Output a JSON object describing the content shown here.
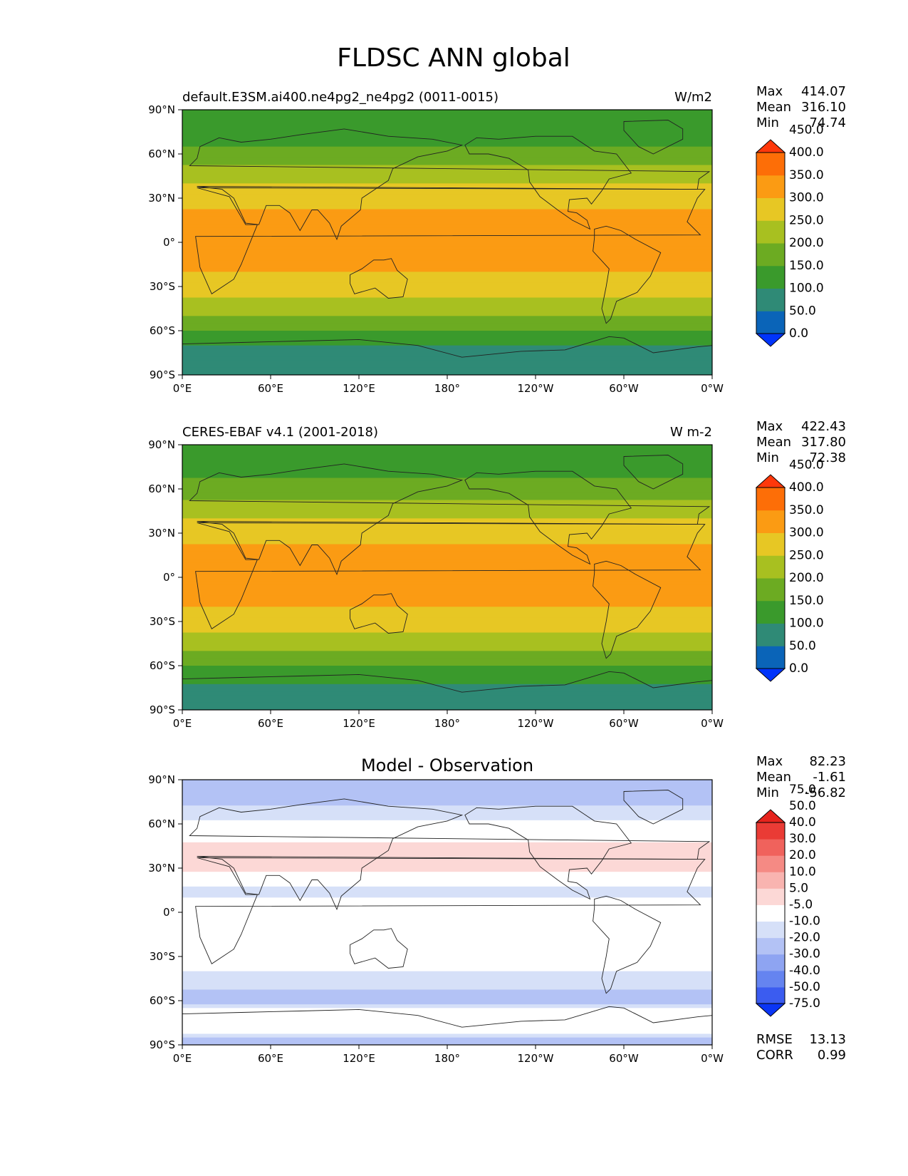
{
  "figure": {
    "title": "FLDSC ANN global"
  },
  "axes": {
    "lat_ticks": [
      "90°N",
      "60°N",
      "30°N",
      "0°",
      "30°S",
      "60°S",
      "90°S"
    ],
    "lon_ticks": [
      "0°E",
      "60°E",
      "120°E",
      "180°",
      "120°W",
      "60°W",
      "0°W"
    ]
  },
  "colors": {
    "abs_levels": [
      "#0034fb",
      "#0a64b8",
      "#2f8a76",
      "#3a9a2c",
      "#6cab22",
      "#a8c020",
      "#e7c724",
      "#fb9b13",
      "#fd6e07",
      "#ff380b"
    ],
    "diff_levels": [
      "#0a35f5",
      "#3b5cf0",
      "#6584f0",
      "#8ea4f2",
      "#b3c2f5",
      "#d6e0f8",
      "#ffffff",
      "#fcd8d6",
      "#f9b4b0",
      "#f58a84",
      "#f0625c",
      "#ea3b35",
      "#e6231d"
    ]
  },
  "chart_data": [
    {
      "type": "heatmap",
      "title": "default.E3SM.ai400.ne4pg2_ne4pg2 (0011-0015)",
      "units": "W/m2",
      "stats": {
        "max": "414.07",
        "mean": "316.10",
        "min": "74.74"
      },
      "stat_labels": [
        "Max",
        "Mean",
        "Min"
      ],
      "colorbar": [
        "0.0",
        "50.0",
        "100.0",
        "150.0",
        "200.0",
        "250.0",
        "300.0",
        "350.0",
        "400.0",
        "450.0"
      ],
      "xlim": [
        0,
        360
      ],
      "ylim": [
        -90,
        90
      ],
      "mean_profile": [
        {
          "lat": 90,
          "value": 160
        },
        {
          "lat": 75,
          "value": 175
        },
        {
          "lat": 60,
          "value": 215
        },
        {
          "lat": 45,
          "value": 280
        },
        {
          "lat": 30,
          "value": 330
        },
        {
          "lat": 15,
          "value": 365
        },
        {
          "lat": 0,
          "value": 370
        },
        {
          "lat": -15,
          "value": 360
        },
        {
          "lat": -30,
          "value": 325
        },
        {
          "lat": -45,
          "value": 270
        },
        {
          "lat": -60,
          "value": 200
        },
        {
          "lat": -75,
          "value": 130
        },
        {
          "lat": -90,
          "value": 110
        }
      ]
    },
    {
      "type": "heatmap",
      "title": "CERES-EBAF v4.1 (2001-2018)",
      "units": "W m-2",
      "stats": {
        "max": "422.43",
        "mean": "317.80",
        "min": "72.38"
      },
      "stat_labels": [
        "Max",
        "Mean",
        "Min"
      ],
      "colorbar": [
        "0.0",
        "50.0",
        "100.0",
        "150.0",
        "200.0",
        "250.0",
        "300.0",
        "350.0",
        "400.0",
        "450.0"
      ],
      "xlim": [
        0,
        360
      ],
      "ylim": [
        -90,
        90
      ],
      "mean_profile": [
        {
          "lat": 90,
          "value": 165
        },
        {
          "lat": 75,
          "value": 180
        },
        {
          "lat": 60,
          "value": 220
        },
        {
          "lat": 45,
          "value": 285
        },
        {
          "lat": 30,
          "value": 335
        },
        {
          "lat": 15,
          "value": 370
        },
        {
          "lat": 0,
          "value": 372
        },
        {
          "lat": -15,
          "value": 362
        },
        {
          "lat": -30,
          "value": 330
        },
        {
          "lat": -45,
          "value": 272
        },
        {
          "lat": -60,
          "value": 205
        },
        {
          "lat": -75,
          "value": 135
        },
        {
          "lat": -90,
          "value": 115
        }
      ]
    },
    {
      "type": "heatmap",
      "title": "Model - Observation",
      "units": "",
      "stats": {
        "max": "82.23",
        "mean": "-1.61",
        "min": "-56.82"
      },
      "stat_labels": [
        "Max",
        "Mean",
        "Min"
      ],
      "extra_stats": [
        {
          "label": "RMSE",
          "value": "13.13"
        },
        {
          "label": "CORR",
          "value": "0.99"
        }
      ],
      "colorbar": [
        "-75.0",
        "-50.0",
        "-40.0",
        "-30.0",
        "-20.0",
        "-10.0",
        "-5.0",
        "5.0",
        "10.0",
        "20.0",
        "30.0",
        "40.0",
        "50.0",
        "75.0"
      ],
      "xlim": [
        0,
        360
      ],
      "ylim": [
        -90,
        90
      ],
      "mean_profile": [
        {
          "lat": 90,
          "value": -15
        },
        {
          "lat": 75,
          "value": -12
        },
        {
          "lat": 60,
          "value": -4
        },
        {
          "lat": 45,
          "value": 6
        },
        {
          "lat": 30,
          "value": 8
        },
        {
          "lat": 15,
          "value": -8
        },
        {
          "lat": 0,
          "value": 0
        },
        {
          "lat": -15,
          "value": 4
        },
        {
          "lat": -30,
          "value": 2
        },
        {
          "lat": -45,
          "value": -8
        },
        {
          "lat": -60,
          "value": -12
        },
        {
          "lat": -75,
          "value": 6
        },
        {
          "lat": -90,
          "value": -18
        }
      ]
    }
  ]
}
